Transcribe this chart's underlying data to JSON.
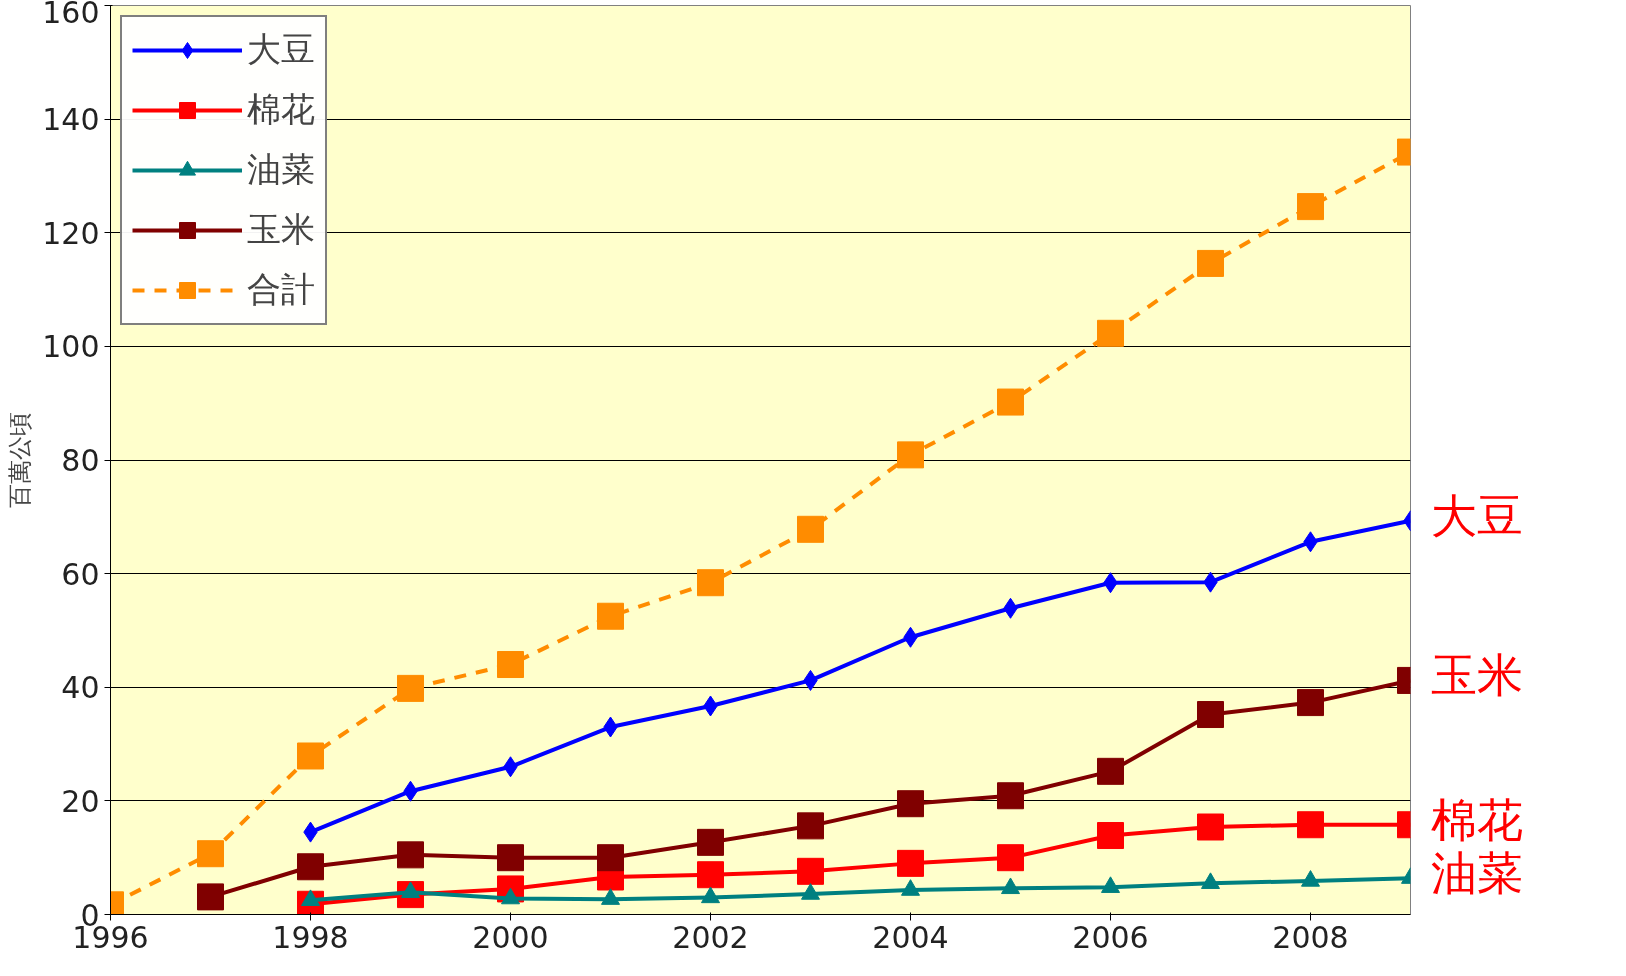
{
  "chart_data": {
    "type": "line",
    "ylabel": "百萬公頃",
    "x": [
      1996,
      1997,
      1998,
      1999,
      2000,
      2001,
      2002,
      2003,
      2004,
      2005,
      2006,
      2007,
      2008,
      2009
    ],
    "xlim": [
      1996,
      2009
    ],
    "xticks": [
      1996,
      1998,
      2000,
      2002,
      2004,
      2006,
      2008
    ],
    "ylim": [
      0,
      160
    ],
    "yticks": [
      0,
      20,
      40,
      60,
      80,
      100,
      120,
      140,
      160
    ],
    "grid": "y",
    "legend": "top left",
    "series": [
      {
        "name": "大豆",
        "color": "#0000ff",
        "marker": "diamond",
        "values": [
          null,
          null,
          14.5,
          21.7,
          26,
          33,
          36.7,
          41.2,
          48.8,
          53.9,
          58.4,
          58.5,
          65.6,
          69.3
        ]
      },
      {
        "name": "棉花",
        "color": "#ff0000",
        "marker": "square",
        "values": [
          null,
          null,
          1.8,
          3.5,
          4.5,
          6.6,
          7,
          7.6,
          9,
          10,
          13.9,
          15.4,
          15.8,
          15.8
        ]
      },
      {
        "name": "油菜",
        "color": "#008080",
        "marker": "triangle",
        "values": [
          null,
          null,
          2.5,
          3.9,
          2.8,
          2.7,
          3,
          3.6,
          4.3,
          4.6,
          4.8,
          5.5,
          5.9,
          6.4
        ]
      },
      {
        "name": "玉米",
        "color": "#800000",
        "marker": "square",
        "values": [
          null,
          3.1,
          8.4,
          10.5,
          10,
          10,
          12.7,
          15.6,
          19.5,
          20.9,
          25.2,
          35.2,
          37.3,
          41.2
        ]
      },
      {
        "name": "合計",
        "color": "#ff8c00",
        "marker": "square",
        "line_style": "dashed",
        "values": [
          1.7,
          10.7,
          27.9,
          39.8,
          44,
          52.5,
          58.4,
          67.8,
          80.9,
          90.2,
          102.3,
          114.6,
          124.6,
          134.2
        ]
      }
    ],
    "annotations": [
      "大豆",
      "玉米",
      "棉花",
      "油菜"
    ]
  }
}
